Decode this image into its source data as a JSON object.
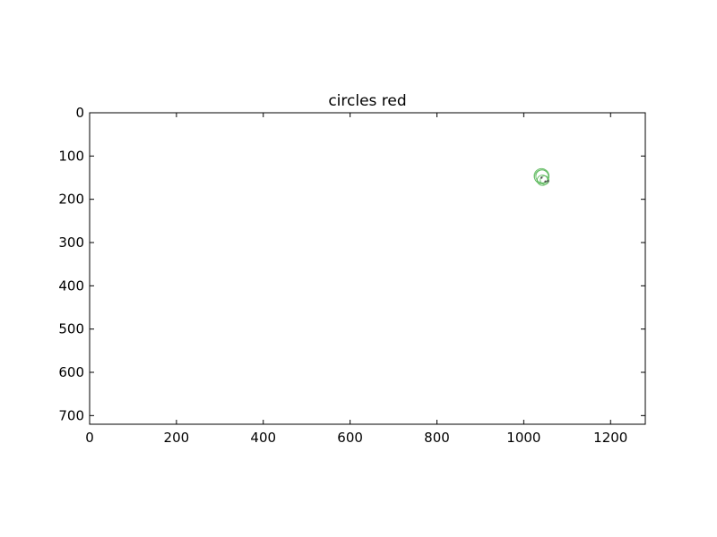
{
  "chart_data": {
    "type": "scatter",
    "title": "circles red",
    "xlabel": "",
    "ylabel": "",
    "xlim": [
      0,
      1280
    ],
    "ylim": [
      720,
      0
    ],
    "y_inverted": true,
    "grid": false,
    "x_ticks": [
      "0",
      "200",
      "400",
      "600",
      "800",
      "1000",
      "1200"
    ],
    "y_ticks": [
      "0",
      "100",
      "200",
      "300",
      "400",
      "500",
      "600",
      "700"
    ],
    "series": [
      {
        "color": "#5cb85c",
        "marker": "circle-outline",
        "points": [
          {
            "x": 1041,
            "y": 146,
            "r": 17
          },
          {
            "x": 1041,
            "y": 148,
            "r": 16
          },
          {
            "x": 1043,
            "y": 147,
            "r": 15
          },
          {
            "x": 1048,
            "y": 156,
            "r": 10
          },
          {
            "x": 1043,
            "y": 156,
            "r": 12
          }
        ]
      },
      {
        "color": "#555555",
        "marker": "dot",
        "points": [
          {
            "x": 1041,
            "y": 150
          },
          {
            "x": 1050,
            "y": 159
          },
          {
            "x": 1056,
            "y": 158
          }
        ]
      }
    ]
  }
}
